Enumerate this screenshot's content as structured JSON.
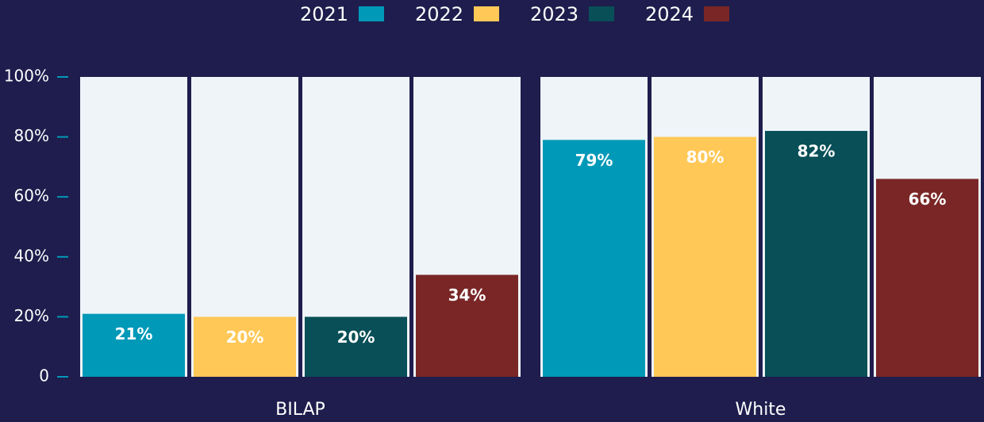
{
  "chart_data": {
    "type": "bar",
    "categories": [
      "BILAP",
      "White"
    ],
    "series": [
      {
        "name": "2021",
        "color": "#0099b8",
        "values": [
          21,
          79
        ],
        "value_labels": [
          "21%",
          "79%"
        ]
      },
      {
        "name": "2022",
        "color": "#ffc857",
        "values": [
          20,
          80
        ],
        "value_labels": [
          "20%",
          "80%"
        ]
      },
      {
        "name": "2023",
        "color": "#084f57",
        "values": [
          20,
          82
        ],
        "value_labels": [
          "20%",
          "82%"
        ]
      },
      {
        "name": "2024",
        "color": "#7a2626",
        "values": [
          34,
          66
        ],
        "value_labels": [
          "34%",
          "66%"
        ]
      }
    ],
    "ylim": [
      0,
      100
    ],
    "yticks": [
      0,
      {
        "value": 20,
        "label": "20%"
      },
      {
        "value": 40,
        "label": "40%"
      },
      {
        "value": 60,
        "label": "60%"
      },
      {
        "value": 80,
        "label": "80%"
      },
      {
        "value": 100,
        "label": "100%"
      }
    ],
    "legend": "top"
  }
}
